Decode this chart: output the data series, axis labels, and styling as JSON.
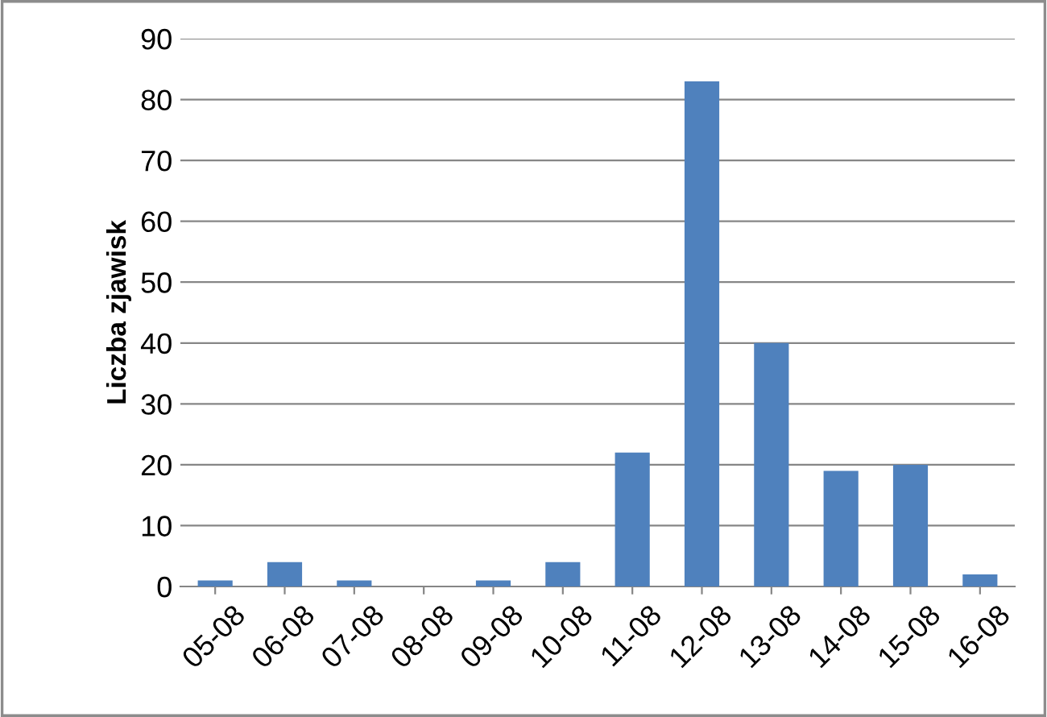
{
  "chart_data": {
    "type": "bar",
    "ylabel": "Liczba zjawisk",
    "categories": [
      "05-08",
      "06-08",
      "07-08",
      "08-08",
      "09-08",
      "10-08",
      "11-08",
      "12-08",
      "13-08",
      "14-08",
      "15-08",
      "16-08"
    ],
    "values": [
      1,
      4,
      1,
      0,
      1,
      4,
      22,
      83,
      40,
      19,
      20,
      2
    ],
    "color": "#4f81bd",
    "ylim": [
      0,
      90
    ],
    "yticks": [
      0,
      10,
      20,
      30,
      40,
      50,
      60,
      70,
      80,
      90
    ],
    "grid": "y",
    "legend": false
  }
}
